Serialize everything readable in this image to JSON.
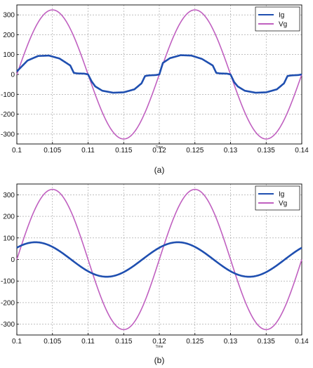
{
  "chart_data": [
    {
      "type": "line",
      "caption": "(a)",
      "xlabel": "Time",
      "ylabel": "",
      "xlim": [
        0.1,
        0.14
      ],
      "ylim": [
        -350,
        350
      ],
      "grid": true,
      "legend": "top-right",
      "x_ticks": [
        "0.1",
        "0.105",
        "0.11",
        "0.115",
        "0.12",
        "0.125",
        "0.13",
        "0.135",
        "0.14"
      ],
      "y_ticks": [
        "300",
        "200",
        "100",
        "0",
        "-100",
        "-200",
        "-300"
      ],
      "series": [
        {
          "name": "Ig",
          "color": "#1f4fb0",
          "x": [
            0.1,
            0.1015,
            0.103,
            0.1045,
            0.106,
            0.1075,
            0.108,
            0.1085,
            0.1095,
            0.11,
            0.1105,
            0.111,
            0.112,
            0.1135,
            0.115,
            0.1165,
            0.1175,
            0.118,
            0.1185,
            0.1195,
            0.12,
            0.1205,
            0.1215,
            0.123,
            0.1245,
            0.126,
            0.1275,
            0.128,
            0.1285,
            0.1295,
            0.13,
            0.1305,
            0.131,
            0.132,
            0.1335,
            0.135,
            0.1365,
            0.1375,
            0.138,
            0.1385,
            0.1395,
            0.14
          ],
          "y": [
            15,
            70,
            93,
            95,
            80,
            45,
            8,
            5,
            4,
            0,
            -35,
            -60,
            -82,
            -92,
            -90,
            -75,
            -45,
            -8,
            -5,
            -3,
            0,
            58,
            82,
            97,
            95,
            78,
            45,
            8,
            5,
            4,
            0,
            -38,
            -60,
            -82,
            -92,
            -90,
            -75,
            -45,
            -8,
            -5,
            -3,
            0
          ]
        },
        {
          "name": "Vg",
          "color": "#c060c0",
          "function": "325*sin(2*pi*50*(t-0.1))",
          "amplitude": 325,
          "frequency_hz": 50
        }
      ]
    },
    {
      "type": "line",
      "caption": "(b)",
      "xlabel": "Time",
      "ylabel": "",
      "xlim": [
        0.1,
        0.14
      ],
      "ylim": [
        -350,
        350
      ],
      "grid": true,
      "legend": "top-right",
      "x_ticks": [
        "0.1",
        "0.105",
        "0.11",
        "0.115",
        "0.12",
        "0.125",
        "0.13",
        "0.135",
        "0.14"
      ],
      "y_ticks": [
        "300",
        "200",
        "100",
        "0",
        "-100",
        "-200",
        "-300"
      ],
      "series": [
        {
          "name": "Ig",
          "color": "#1f4fb0",
          "function": "80*sin(2*pi*50*(t-0.1)+0.75)",
          "amplitude": 80,
          "frequency_hz": 50
        },
        {
          "name": "Vg",
          "color": "#c060c0",
          "function": "325*sin(2*pi*50*(t-0.1))",
          "amplitude": 325,
          "frequency_hz": 50
        }
      ]
    }
  ]
}
